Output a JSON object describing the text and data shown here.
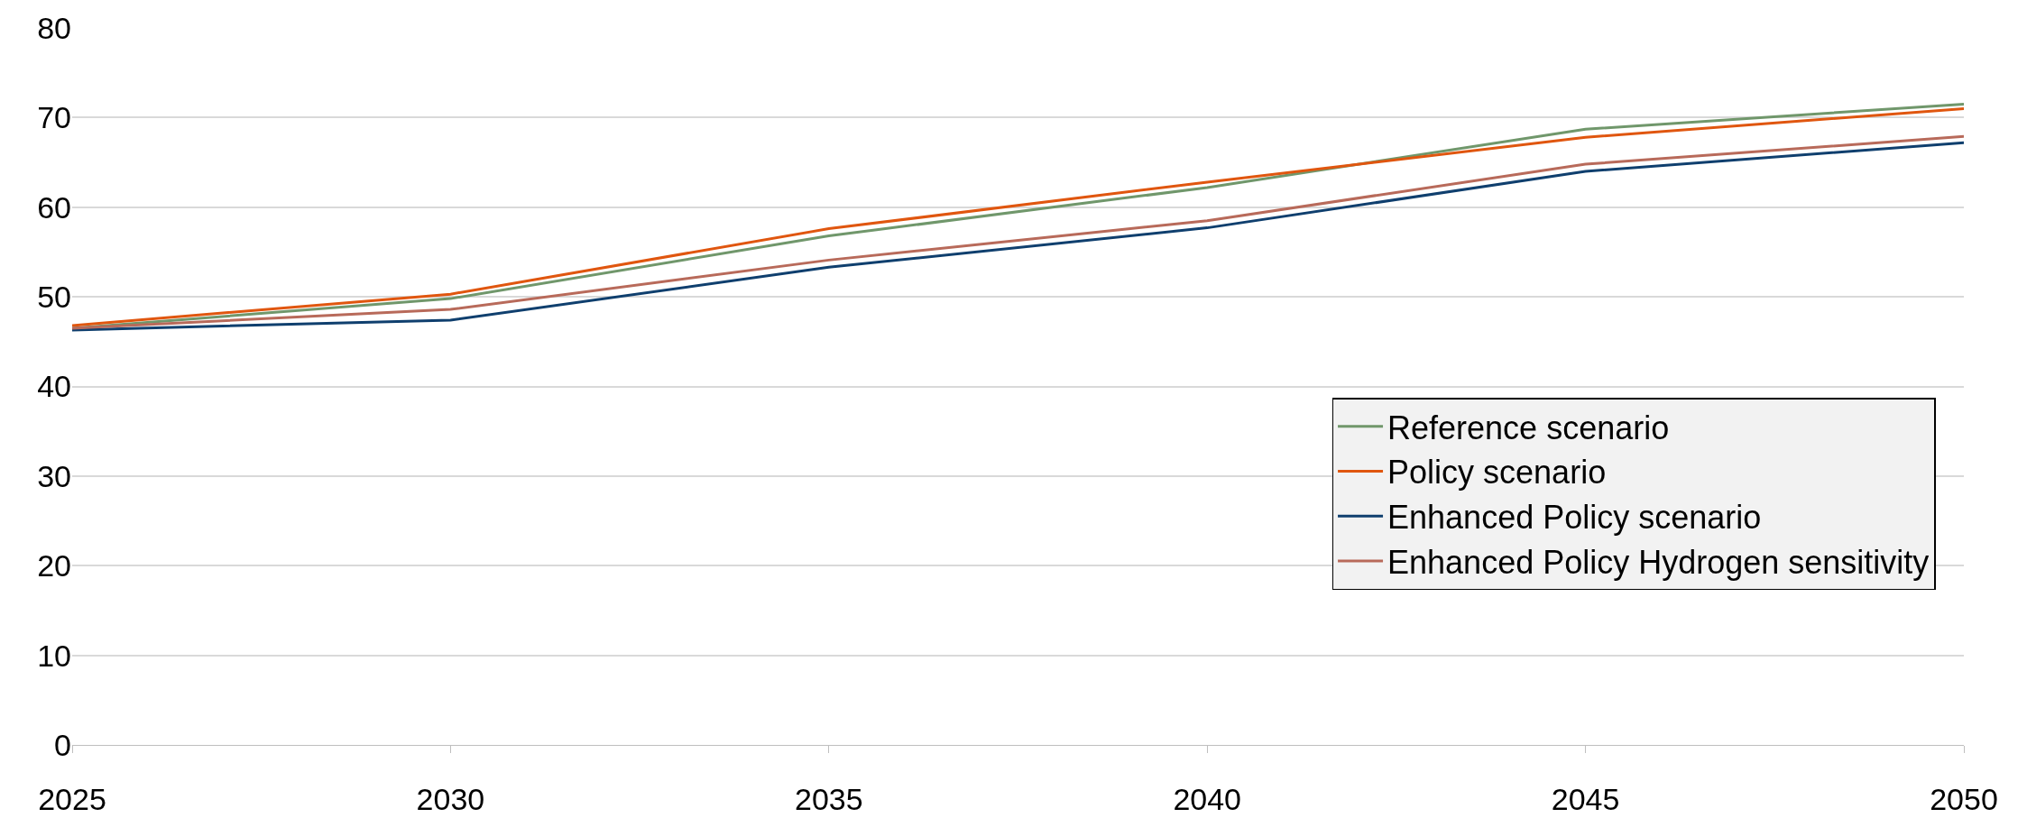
{
  "chart_data": {
    "type": "line",
    "x": [
      2025,
      2030,
      2035,
      2040,
      2045,
      2050
    ],
    "series": [
      {
        "name": "Reference scenario",
        "color": "#70976b",
        "values": [
          46.5,
          49.8,
          56.8,
          62.2,
          68.7,
          71.5
        ]
      },
      {
        "name": "Policy scenario",
        "color": "#e0560f",
        "values": [
          46.8,
          50.3,
          57.6,
          62.8,
          67.8,
          71.0
        ]
      },
      {
        "name": "Enhanced Policy scenario",
        "color": "#0f3f6e",
        "values": [
          46.3,
          47.4,
          53.3,
          57.7,
          64.0,
          67.2
        ]
      },
      {
        "name": "Enhanced Policy Hydrogen sensitivity",
        "color": "#b86a5a",
        "values": [
          46.5,
          48.6,
          54.1,
          58.5,
          64.8,
          67.9
        ]
      }
    ],
    "xlim": [
      2025,
      2050
    ],
    "xticks": [
      2025,
      2030,
      2035,
      2040,
      2045,
      2050
    ],
    "ylim": [
      0,
      80
    ],
    "yticks": [
      0,
      10,
      20,
      30,
      40,
      50,
      60,
      70,
      80
    ],
    "grid": "y",
    "legend": "right",
    "marker": "none",
    "line_style": "solid"
  }
}
